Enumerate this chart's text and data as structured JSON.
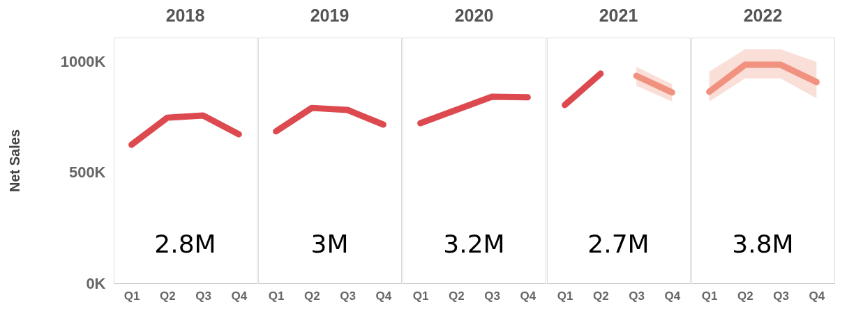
{
  "chart_data": [
    {
      "type": "line",
      "title": "2018",
      "ylabel": "Net Sales",
      "categories": [
        "Q1",
        "Q2",
        "Q3",
        "Q4"
      ],
      "ylim": [
        0,
        1110000
      ],
      "yticks": [
        {
          "value": 0,
          "label": "0K"
        },
        {
          "value": 500000,
          "label": "500K"
        },
        {
          "value": 1000000,
          "label": "1000K"
        }
      ],
      "annotations": [
        "2.8M"
      ],
      "series": [
        {
          "color": "#dc4a50",
          "values": [
            626000,
            748000,
            758000,
            673000
          ]
        }
      ]
    },
    {
      "type": "line",
      "title": "2019",
      "categories": [
        "Q1",
        "Q2",
        "Q3",
        "Q4"
      ],
      "ylim": [
        0,
        1110000
      ],
      "tick_labels": "x",
      "annotations": [
        "3M"
      ],
      "series": [
        {
          "color": "#dc4a50",
          "values": [
            686000,
            792000,
            783000,
            717000
          ]
        }
      ]
    },
    {
      "type": "line",
      "title": "2020",
      "categories": [
        "Q1",
        "Q2",
        "Q3",
        "Q4"
      ],
      "ylim": [
        0,
        1110000
      ],
      "tick_labels": "x",
      "annotations": [
        "3.2M"
      ],
      "series": [
        {
          "color": "#dc4a50",
          "values": [
            723000,
            783000,
            843000,
            840000
          ]
        }
      ]
    },
    {
      "type": "line",
      "title": "2021",
      "categories": [
        "Q1",
        "Q2",
        "Q3",
        "Q4"
      ],
      "ylim": [
        0,
        1110000
      ],
      "tick_labels": "x",
      "annotations": [
        "2.7M"
      ],
      "series": [
        {
          "color": "#dc4a50",
          "values": [
            805000,
            947000,
            null,
            null
          ]
        },
        {
          "color": "#f0927f",
          "values": [
            null,
            null,
            937000,
            862000
          ],
          "lower": [
            null,
            null,
            893000,
            821000
          ],
          "upper": [
            null,
            null,
            978000,
            899000
          ]
        }
      ]
    },
    {
      "type": "line",
      "title": "2022",
      "categories": [
        "Q1",
        "Q2",
        "Q3",
        "Q4"
      ],
      "ylim": [
        0,
        1110000
      ],
      "tick_labels": "x",
      "annotations": [
        "3.8M"
      ],
      "series": [
        {
          "color": "#f0927f",
          "values": [
            865000,
            987000,
            987000,
            909000
          ],
          "lower": [
            821000,
            925000,
            925000,
            836000
          ],
          "upper": [
            956000,
            1057000,
            1057000,
            1000000
          ]
        }
      ]
    }
  ]
}
